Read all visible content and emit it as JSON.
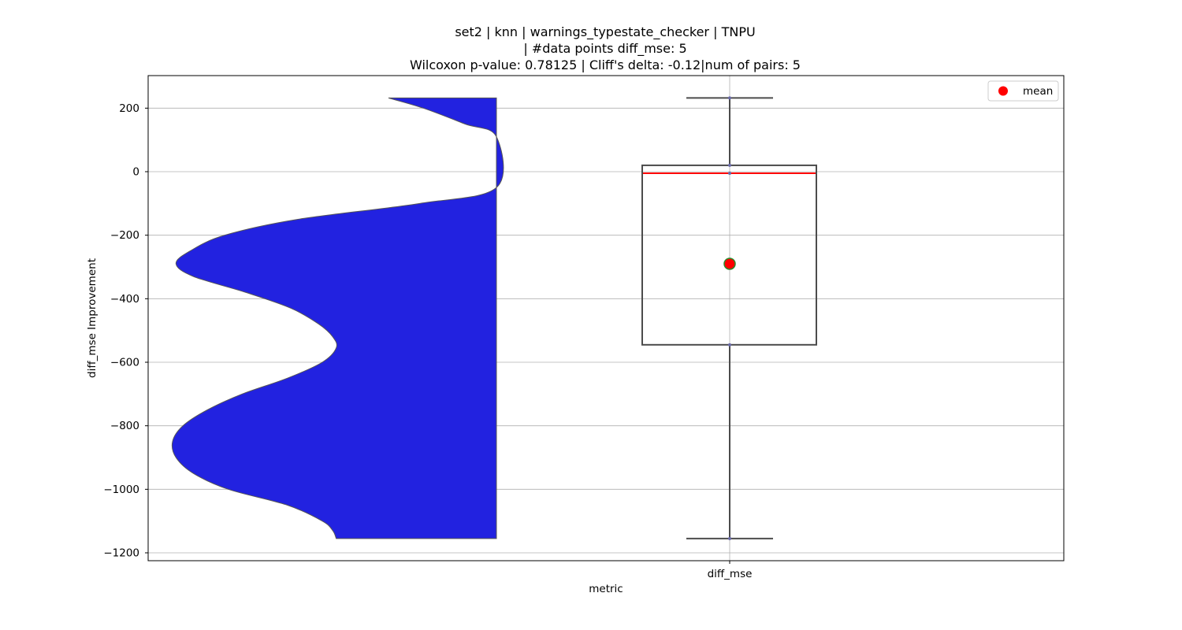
{
  "chart_data": {
    "type": "boxplot",
    "title_lines": [
      "set2 | knn | warnings_typestate_checker | TNPU",
      "| #data points diff_mse: 5",
      "Wilcoxon p-value: 0.78125 | Cliff's delta: -0.12|num of pairs: 5"
    ],
    "xlabel": "metric",
    "ylabel": "diff_mse Improvement",
    "categories": [
      "diff_mse"
    ],
    "ylim": [
      -1225,
      300
    ],
    "yticks": [
      200,
      0,
      -200,
      -400,
      -600,
      -800,
      -1000,
      -1200
    ],
    "ytick_labels": [
      "200",
      "0",
      "−200",
      "−400",
      "−600",
      "−800",
      "−1000",
      "−1200"
    ],
    "grid": true,
    "legend": {
      "position": "top-right",
      "entries": [
        {
          "label": "mean",
          "color": "#ff0000"
        }
      ]
    },
    "box": {
      "whisker_low": -1155,
      "q1": -545,
      "median": -5,
      "q3": 20,
      "whisker_high": 232,
      "mean": -290
    },
    "points": [
      -1155,
      -545,
      -5,
      20,
      232
    ],
    "violin": {
      "color": "#2222e0",
      "profile": [
        [
          232,
          0.31
        ],
        [
          200,
          0.21
        ],
        [
          150,
          0.09
        ],
        [
          110,
          0.0
        ],
        [
          -50,
          0.0
        ],
        [
          -100,
          0.22
        ],
        [
          -150,
          0.57
        ],
        [
          -200,
          0.78
        ],
        [
          -250,
          0.88
        ],
        [
          -290,
          0.92
        ],
        [
          -330,
          0.87
        ],
        [
          -380,
          0.72
        ],
        [
          -430,
          0.59
        ],
        [
          -480,
          0.51
        ],
        [
          -520,
          0.47
        ],
        [
          -555,
          0.46
        ],
        [
          -600,
          0.5
        ],
        [
          -650,
          0.6
        ],
        [
          -700,
          0.73
        ],
        [
          -750,
          0.83
        ],
        [
          -800,
          0.9
        ],
        [
          -850,
          0.93
        ],
        [
          -900,
          0.92
        ],
        [
          -950,
          0.87
        ],
        [
          -1000,
          0.77
        ],
        [
          -1050,
          0.6
        ],
        [
          -1100,
          0.5
        ],
        [
          -1130,
          0.47
        ],
        [
          -1155,
          0.46
        ]
      ]
    },
    "colors": {
      "box_edge": "#4c4c4c",
      "median": "#ff0000",
      "mean_fill": "#ff0000",
      "mean_edge": "#2a8a2a",
      "grid": "#b0b0b0"
    }
  }
}
